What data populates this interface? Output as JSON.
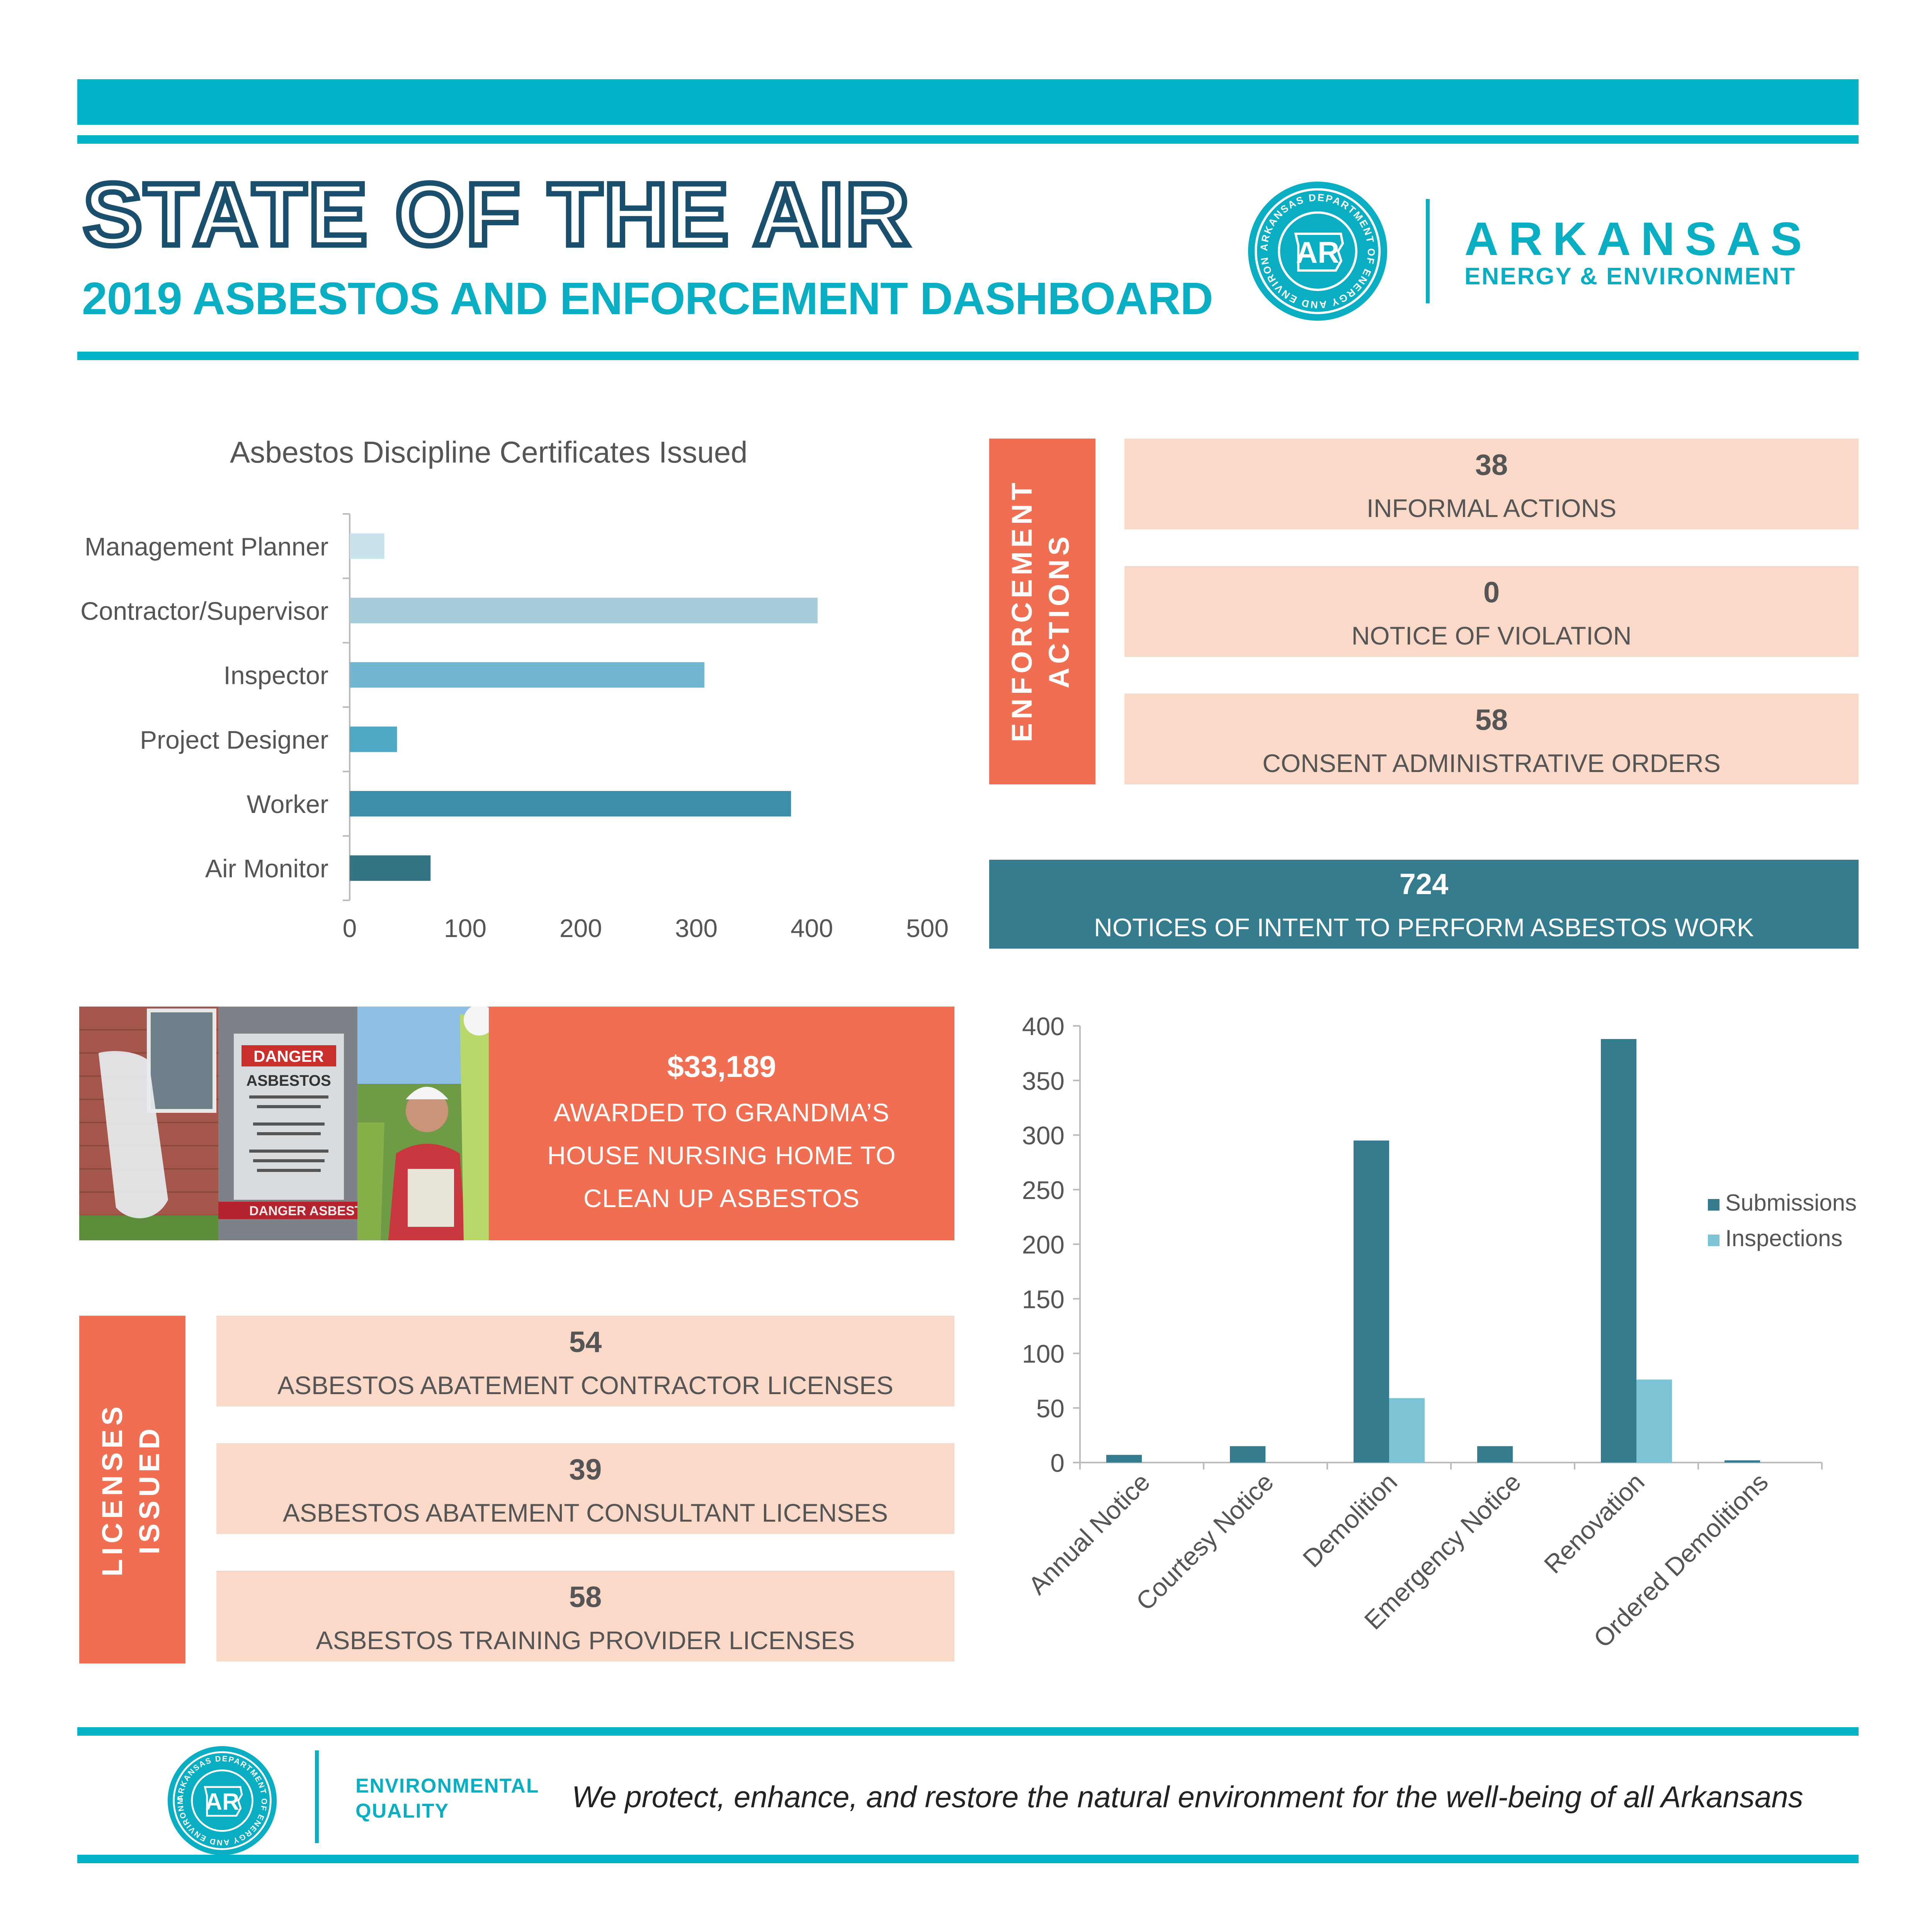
{
  "header": {
    "title": "STATE OF THE AIR",
    "subtitle": "2019 ASBESTOS AND ENFORCEMENT DASHBOARD",
    "brand_name": "ARKANSAS",
    "brand_sub": "ENERGY & ENVIRONMENT",
    "logo_ring_text": "ARKANSAS DEPARTMENT OF ENERGY AND ENVIRONMENT",
    "logo_mark": "AR"
  },
  "colors": {
    "teal_band": "#05b3c9",
    "accent_orange": "#f06f52",
    "peach": "#fbd9c8",
    "dark_teal": "#347b8e",
    "light_teal": "#7cc3d6"
  },
  "enforcement": {
    "label_line1": "ENFORCEMENT",
    "label_line2": "ACTIONS",
    "items": [
      {
        "value": "38",
        "label": "INFORMAL ACTIONS"
      },
      {
        "value": "0",
        "label": "NOTICE OF VIOLATION"
      },
      {
        "value": "58",
        "label": "CONSENT ADMINISTRATIVE ORDERS"
      }
    ]
  },
  "notices": {
    "value": "724",
    "label": "NOTICES OF INTENT TO PERFORM ASBESTOS WORK"
  },
  "award": {
    "amount": "$33,189",
    "lines": [
      "AWARDED TO GRANDMA’S",
      "HOUSE NURSING HOME TO",
      "CLEAN UP ASBESTOS"
    ]
  },
  "photo": {
    "sign_title": "DANGER",
    "sign_word": "ASBESTOS",
    "tape_text": "DANGER ASBESTOS"
  },
  "licenses": {
    "label_line1": "LICENSES",
    "label_line2": "ISSUED",
    "items": [
      {
        "value": "54",
        "label": "ASBESTOS ABATEMENT CONTRACTOR LICENSES"
      },
      {
        "value": "39",
        "label": "ASBESTOS ABATEMENT CONSULTANT LICENSES"
      },
      {
        "value": "58",
        "label": "ASBESTOS TRAINING PROVIDER LICENSES"
      }
    ]
  },
  "footer": {
    "division_line1": "ENVIRONMENTAL",
    "division_line2": "QUALITY",
    "tagline": "We protect, enhance, and restore the natural environment for the well-being of all Arkansans"
  },
  "chart_data": [
    {
      "type": "bar",
      "orientation": "horizontal",
      "title": "Asbestos Discipline Certificates Issued",
      "categories": [
        "Management Planner",
        "Contractor/Supervisor",
        "Inspector",
        "Project Designer",
        "Worker",
        "Air Monitor"
      ],
      "values": [
        30,
        405,
        307,
        41,
        382,
        70
      ],
      "bar_colors": [
        "#c8e3ea",
        "#a6cbdb",
        "#72b6cf",
        "#4fa8c4",
        "#3d8ea6",
        "#357485"
      ],
      "xlim": [
        0,
        500
      ],
      "xticks": [
        "0",
        "100",
        "200",
        "300",
        "400",
        "500"
      ],
      "grid": false,
      "legend": "none"
    },
    {
      "type": "bar",
      "orientation": "vertical",
      "categories": [
        "Annual Notice",
        "Courtesy Notice",
        "Demolition",
        "Emergency Notice",
        "Renovation",
        "Ordered Demolitions"
      ],
      "series": [
        {
          "name": "Submissions",
          "values": [
            7,
            15,
            295,
            15,
            388,
            2
          ],
          "color": "#347b8e"
        },
        {
          "name": "Inspections",
          "values": [
            0,
            0,
            59,
            0,
            76,
            0
          ],
          "color": "#7cc3d6"
        }
      ],
      "ylim": [
        0,
        400
      ],
      "yticks": [
        "0",
        "50",
        "100",
        "150",
        "200",
        "250",
        "300",
        "350",
        "400"
      ],
      "grid": false,
      "legend": "right"
    }
  ]
}
